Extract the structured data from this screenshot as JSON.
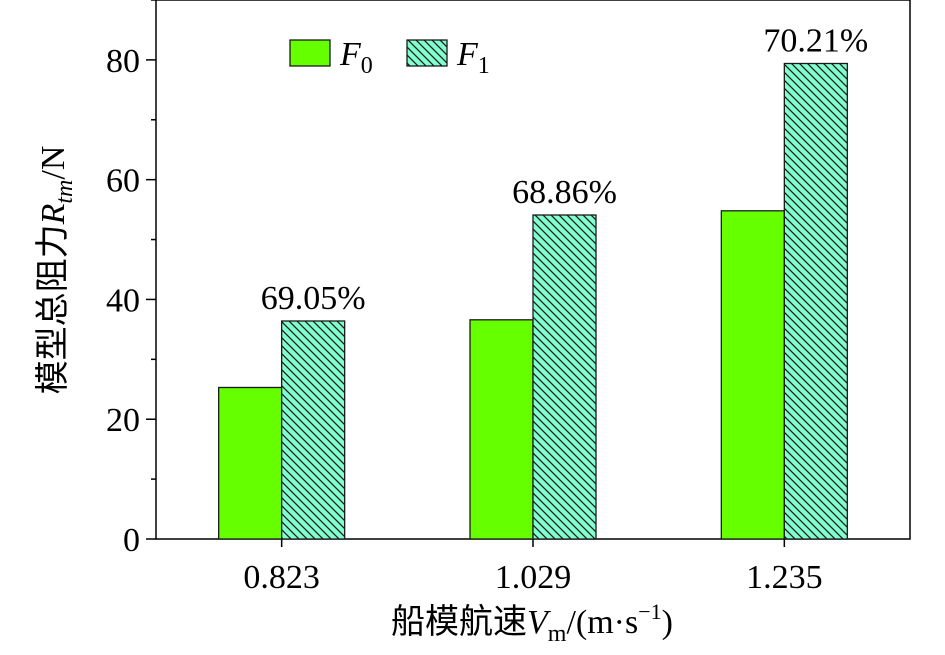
{
  "chart_data": {
    "type": "bar",
    "categories": [
      "0.823",
      "1.029",
      "1.235"
    ],
    "series": [
      {
        "name": "F0",
        "legend_main": "F",
        "legend_sub": "0",
        "color": "#66ff00",
        "pattern": "solid",
        "values": [
          25.3,
          36.6,
          54.8
        ]
      },
      {
        "name": "F1",
        "legend_main": "F",
        "legend_sub": "1",
        "color": "#80ffd0",
        "pattern": "hatch",
        "values": [
          36.4,
          54.1,
          79.4
        ]
      }
    ],
    "data_labels": [
      "69.05%",
      "68.86%",
      "70.21%"
    ],
    "xlabel": {
      "main": "船模航速",
      "var": "V",
      "sub": "m",
      "unit_pre": "/(m·s",
      "sup": "−1",
      "unit_post": ")"
    },
    "ylabel": {
      "main": "模型总阻力",
      "var": "R",
      "sub": "tm",
      "unit": "/N"
    },
    "ylim": [
      0,
      90
    ],
    "yticks": [
      0,
      20,
      40,
      60,
      80
    ],
    "yticks_minor": [
      10,
      30,
      50,
      70,
      90
    ],
    "grid": false,
    "legend_position": "top-left"
  }
}
